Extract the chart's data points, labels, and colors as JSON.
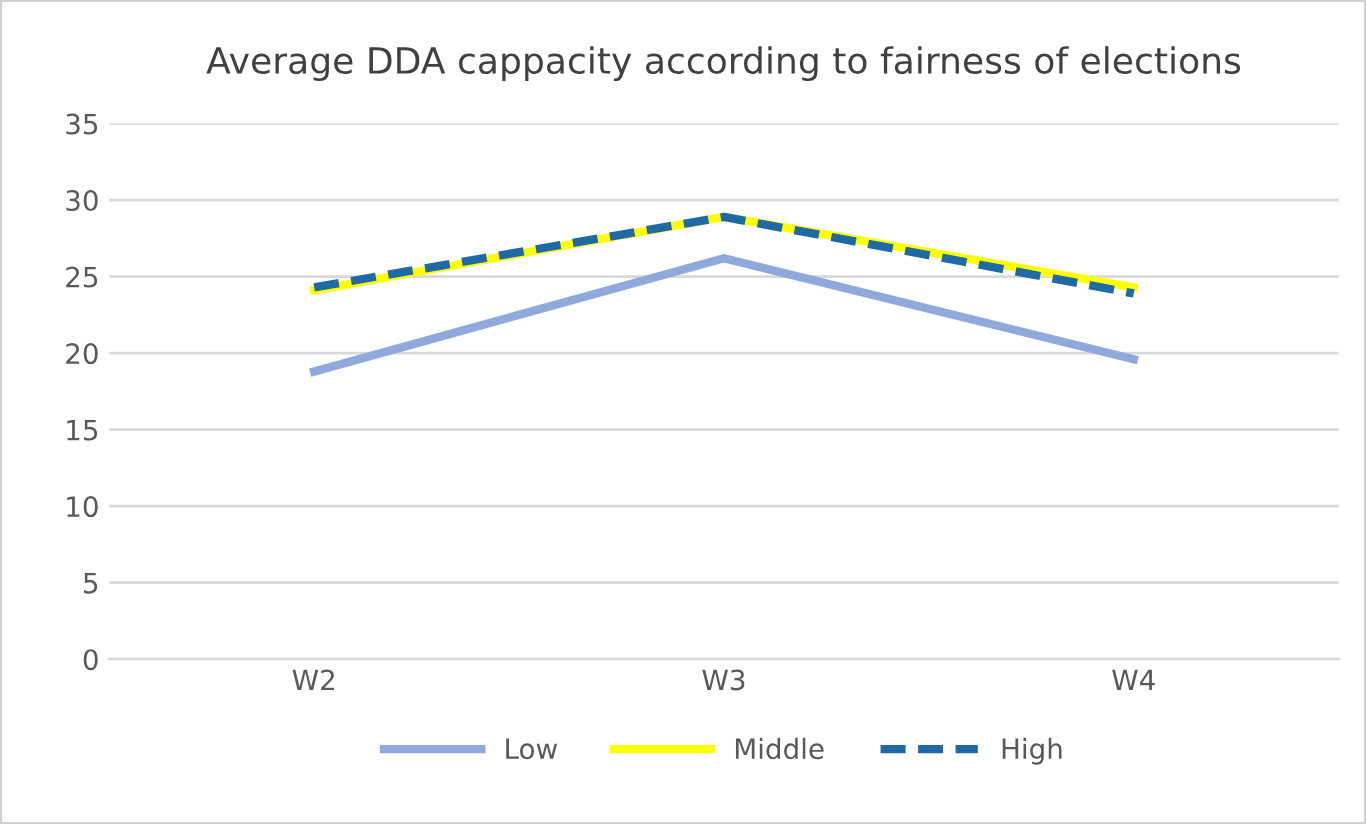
{
  "chart_data": {
    "type": "line",
    "title": "Average DDA cappacity according to fairness of elections",
    "categories": [
      "W2",
      "W3",
      "W4"
    ],
    "series": [
      {
        "name": "Low",
        "color": "#8fa9dc",
        "values": [
          18.8,
          26.2,
          19.6
        ],
        "line_style": "solid"
      },
      {
        "name": "Middle",
        "color": "#ffff00",
        "values": [
          24.1,
          28.9,
          24.3
        ],
        "line_style": "solid"
      },
      {
        "name": "High",
        "color": "#1f6aa5",
        "values": [
          24.3,
          28.9,
          23.9
        ],
        "line_style": "dashed"
      }
    ],
    "ylim": [
      0,
      35
    ],
    "yticks": [
      0,
      5,
      10,
      15,
      20,
      25,
      30,
      35
    ],
    "grid": "y",
    "legend": "bottom",
    "marker": "none"
  }
}
